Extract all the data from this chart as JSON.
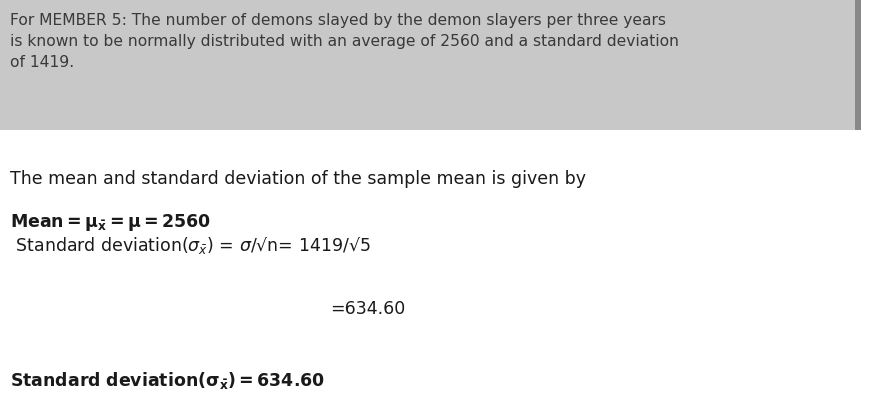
{
  "header_text": "For MEMBER 5: The number of demons slayed by the demon slayers per three years\nis known to be normally distributed with an average of 2560 and a standard deviation\nof 1419.",
  "header_bg_color": "#c8c8c8",
  "header_text_color": "#3a3a3a",
  "right_bar_color": "#888888",
  "body_line1": "The mean and standard deviation of the sample mean is given by",
  "body_line2_bold": "Mean= μ̅ = μ = 2560",
  "body_line3": " Standard deviation(σ̅) = σ/√n= 1419/√5",
  "body_line4": "=634.60",
  "body_line5_bold": "Standard deviation(σ̅) = 634.60",
  "figsize": [
    8.79,
    4.19
  ],
  "dpi": 100,
  "bg_color": "#ffffff",
  "font_size_header": 11.2,
  "font_size_body": 12.5,
  "font_size_bold": 12.5
}
